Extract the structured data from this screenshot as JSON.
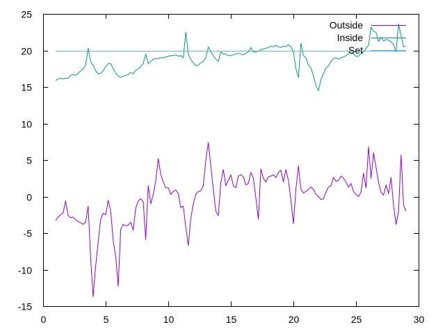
{
  "chart_data": {
    "type": "line",
    "title": "",
    "xlabel": "",
    "ylabel": "",
    "xlim": [
      0,
      30
    ],
    "ylim": [
      -15,
      25
    ],
    "x_ticks": [
      0,
      5,
      10,
      15,
      20,
      25,
      30
    ],
    "y_ticks": [
      -15,
      -10,
      -5,
      0,
      5,
      10,
      15,
      20,
      25
    ],
    "grid": false,
    "legend_position": "top-right",
    "series": [
      {
        "name": "Outside",
        "color": "#9400d3",
        "x": [
          1.0,
          1.2,
          1.4,
          1.6,
          1.8,
          2.0,
          2.2,
          2.4,
          2.6,
          2.8,
          3.0,
          3.2,
          3.4,
          3.6,
          3.8,
          4.0,
          4.2,
          4.4,
          4.6,
          4.8,
          5.0,
          5.2,
          5.4,
          5.6,
          5.8,
          6.0,
          6.2,
          6.4,
          6.6,
          6.8,
          7.0,
          7.2,
          7.4,
          7.6,
          7.8,
          8.0,
          8.2,
          8.4,
          8.6,
          8.8,
          9.0,
          9.2,
          9.4,
          9.6,
          9.8,
          10.0,
          10.2,
          10.4,
          10.6,
          10.8,
          11.0,
          11.2,
          11.4,
          11.6,
          11.8,
          12.0,
          12.2,
          12.4,
          12.6,
          12.8,
          13.0,
          13.2,
          13.4,
          13.6,
          13.8,
          14.0,
          14.2,
          14.4,
          14.6,
          14.8,
          15.0,
          15.2,
          15.4,
          15.6,
          15.8,
          16.0,
          16.2,
          16.4,
          16.6,
          16.8,
          17.0,
          17.2,
          17.4,
          17.6,
          17.8,
          18.0,
          18.2,
          18.4,
          18.6,
          18.8,
          19.0,
          19.2,
          19.4,
          19.6,
          19.8,
          20.0,
          20.2,
          20.4,
          20.6,
          20.8,
          21.0,
          21.2,
          21.4,
          21.6,
          21.8,
          22.0,
          22.2,
          22.4,
          22.6,
          22.8,
          23.0,
          23.2,
          23.4,
          23.6,
          23.8,
          24.0,
          24.2,
          24.4,
          24.6,
          24.8,
          25.0,
          25.2,
          25.4,
          25.6,
          25.8,
          26.0,
          26.2,
          26.4,
          26.6,
          26.8,
          27.0,
          27.2,
          27.4,
          27.6,
          27.8,
          28.0,
          28.2,
          28.4,
          28.6,
          28.8,
          29.0
        ],
        "y": [
          -3.3,
          -2.8,
          -2.5,
          -2.2,
          -0.6,
          -2.6,
          -2.9,
          -2.8,
          -3.2,
          -3.4,
          -3.6,
          -3.8,
          -3.5,
          -1.3,
          -8.5,
          -13.7,
          -9.5,
          -6.2,
          -3.1,
          -2.3,
          -2.5,
          -0.5,
          -2.0,
          -6.0,
          -8.2,
          -12.3,
          -4.5,
          -3.8,
          -4.0,
          -3.9,
          -3.5,
          -4.6,
          -1.6,
          -0.6,
          -0.3,
          -0.7,
          -5.9,
          1.5,
          -1.0,
          0.3,
          2.1,
          5.2,
          3.0,
          2.0,
          1.2,
          1.2,
          0.3,
          0.7,
          0.9,
          0.4,
          -1.5,
          -1.3,
          -4.2,
          -6.7,
          -3.0,
          -1.0,
          0.3,
          0.7,
          0.8,
          1.5,
          5.0,
          7.4,
          4.2,
          1.0,
          -2.0,
          -2.6,
          1.9,
          3.7,
          1.5,
          2.2,
          3.0,
          1.5,
          1.2,
          2.8,
          3.0,
          2.7,
          1.6,
          1.8,
          3.3,
          2.5,
          -0.2,
          -3.1,
          3.8,
          2.5,
          2.0,
          2.7,
          2.8,
          3.0,
          2.6,
          3.3,
          3.6,
          2.0,
          3.7,
          2.2,
          -0.5,
          -3.7,
          1.0,
          4.2,
          1.0,
          0.5,
          0.7,
          1.0,
          1.3,
          1.0,
          0.3,
          0.0,
          -0.4,
          -0.3,
          0.6,
          1.3,
          1.5,
          2.6,
          2.1,
          2.2,
          2.8,
          2.5,
          2.0,
          1.3,
          1.8,
          0.7,
          0.3,
          0.0,
          0.6,
          3.2,
          1.2,
          6.8,
          2.5,
          6.0,
          4.0,
          2.0,
          0.6,
          0.2,
          1.6,
          0.4,
          2.6,
          -1.2,
          -3.8,
          -2.0,
          5.7,
          -1.2,
          -2.0
        ]
      },
      {
        "name": "Inside",
        "color": "#009e73",
        "x": [
          1.0,
          1.2,
          1.4,
          1.6,
          1.8,
          2.0,
          2.2,
          2.4,
          2.6,
          2.8,
          3.0,
          3.2,
          3.4,
          3.6,
          3.8,
          4.0,
          4.2,
          4.4,
          4.6,
          4.8,
          5.0,
          5.2,
          5.4,
          5.6,
          5.8,
          6.0,
          6.2,
          6.4,
          6.6,
          6.8,
          7.0,
          7.2,
          7.4,
          7.6,
          7.8,
          8.0,
          8.2,
          8.4,
          8.6,
          8.8,
          9.0,
          9.2,
          9.4,
          9.6,
          9.8,
          10.0,
          10.2,
          10.4,
          10.6,
          10.8,
          11.0,
          11.2,
          11.4,
          11.6,
          11.8,
          12.0,
          12.2,
          12.4,
          12.6,
          12.8,
          13.0,
          13.2,
          13.4,
          13.6,
          13.8,
          14.0,
          14.2,
          14.4,
          14.6,
          14.8,
          15.0,
          15.2,
          15.4,
          15.6,
          15.8,
          16.0,
          16.2,
          16.4,
          16.6,
          16.8,
          17.0,
          17.2,
          17.4,
          17.6,
          17.8,
          18.0,
          18.2,
          18.4,
          18.6,
          18.8,
          19.0,
          19.2,
          19.4,
          19.6,
          19.8,
          20.0,
          20.2,
          20.4,
          20.6,
          20.8,
          21.0,
          21.2,
          21.4,
          21.6,
          21.8,
          22.0,
          22.2,
          22.4,
          22.6,
          22.8,
          23.0,
          23.2,
          23.4,
          23.6,
          23.8,
          24.0,
          24.2,
          24.4,
          24.6,
          24.8,
          25.0,
          25.2,
          25.4,
          25.6,
          25.8,
          26.0,
          26.2,
          26.4,
          26.6,
          26.8,
          27.0,
          27.2,
          27.4,
          27.6,
          27.8,
          28.0,
          28.2,
          28.4,
          28.6,
          28.8,
          29.0
        ],
        "y": [
          15.9,
          16.1,
          16.2,
          16.1,
          16.2,
          16.2,
          16.6,
          16.7,
          16.6,
          16.9,
          17.2,
          17.5,
          18.0,
          20.3,
          18.4,
          18.0,
          17.2,
          16.8,
          16.9,
          17.2,
          17.8,
          18.2,
          18.2,
          17.5,
          16.9,
          16.5,
          16.3,
          16.5,
          16.6,
          16.7,
          17.0,
          16.8,
          17.3,
          17.5,
          17.8,
          18.2,
          19.5,
          18.2,
          18.5,
          18.8,
          18.9,
          18.9,
          19.0,
          19.0,
          19.1,
          19.2,
          19.3,
          19.3,
          19.4,
          19.2,
          19.3,
          19.0,
          22.5,
          19.5,
          18.8,
          18.3,
          17.9,
          18.0,
          18.3,
          18.5,
          19.0,
          20.5,
          19.8,
          19.3,
          18.8,
          18.5,
          19.8,
          19.5,
          19.5,
          19.3,
          19.3,
          19.4,
          19.5,
          19.6,
          19.5,
          19.4,
          19.6,
          19.8,
          20.4,
          19.8,
          19.8,
          19.9,
          20.1,
          20.2,
          20.3,
          20.4,
          20.6,
          20.5,
          20.7,
          20.5,
          20.4,
          20.6,
          20.5,
          20.8,
          20.5,
          19.8,
          17.5,
          16.3,
          21.0,
          19.3,
          19.0,
          18.0,
          17.6,
          16.5,
          15.2,
          14.5,
          16.0,
          16.8,
          17.6,
          17.9,
          18.5,
          18.9,
          19.0,
          18.8,
          19.0,
          19.1,
          19.3,
          19.6,
          20.0,
          19.5,
          19.2,
          19.2,
          19.6,
          19.8,
          20.3,
          20.7,
          23.2,
          22.6,
          22.5,
          21.2,
          21.8,
          21.3,
          21.5,
          21.4,
          21.2,
          20.8,
          19.8,
          23.6,
          22.0,
          20.5,
          20.6
        ]
      },
      {
        "name": "Set",
        "color": "#56b4e9",
        "x": [
          1.0,
          29.0
        ],
        "y": [
          19.9,
          19.9
        ]
      }
    ]
  }
}
